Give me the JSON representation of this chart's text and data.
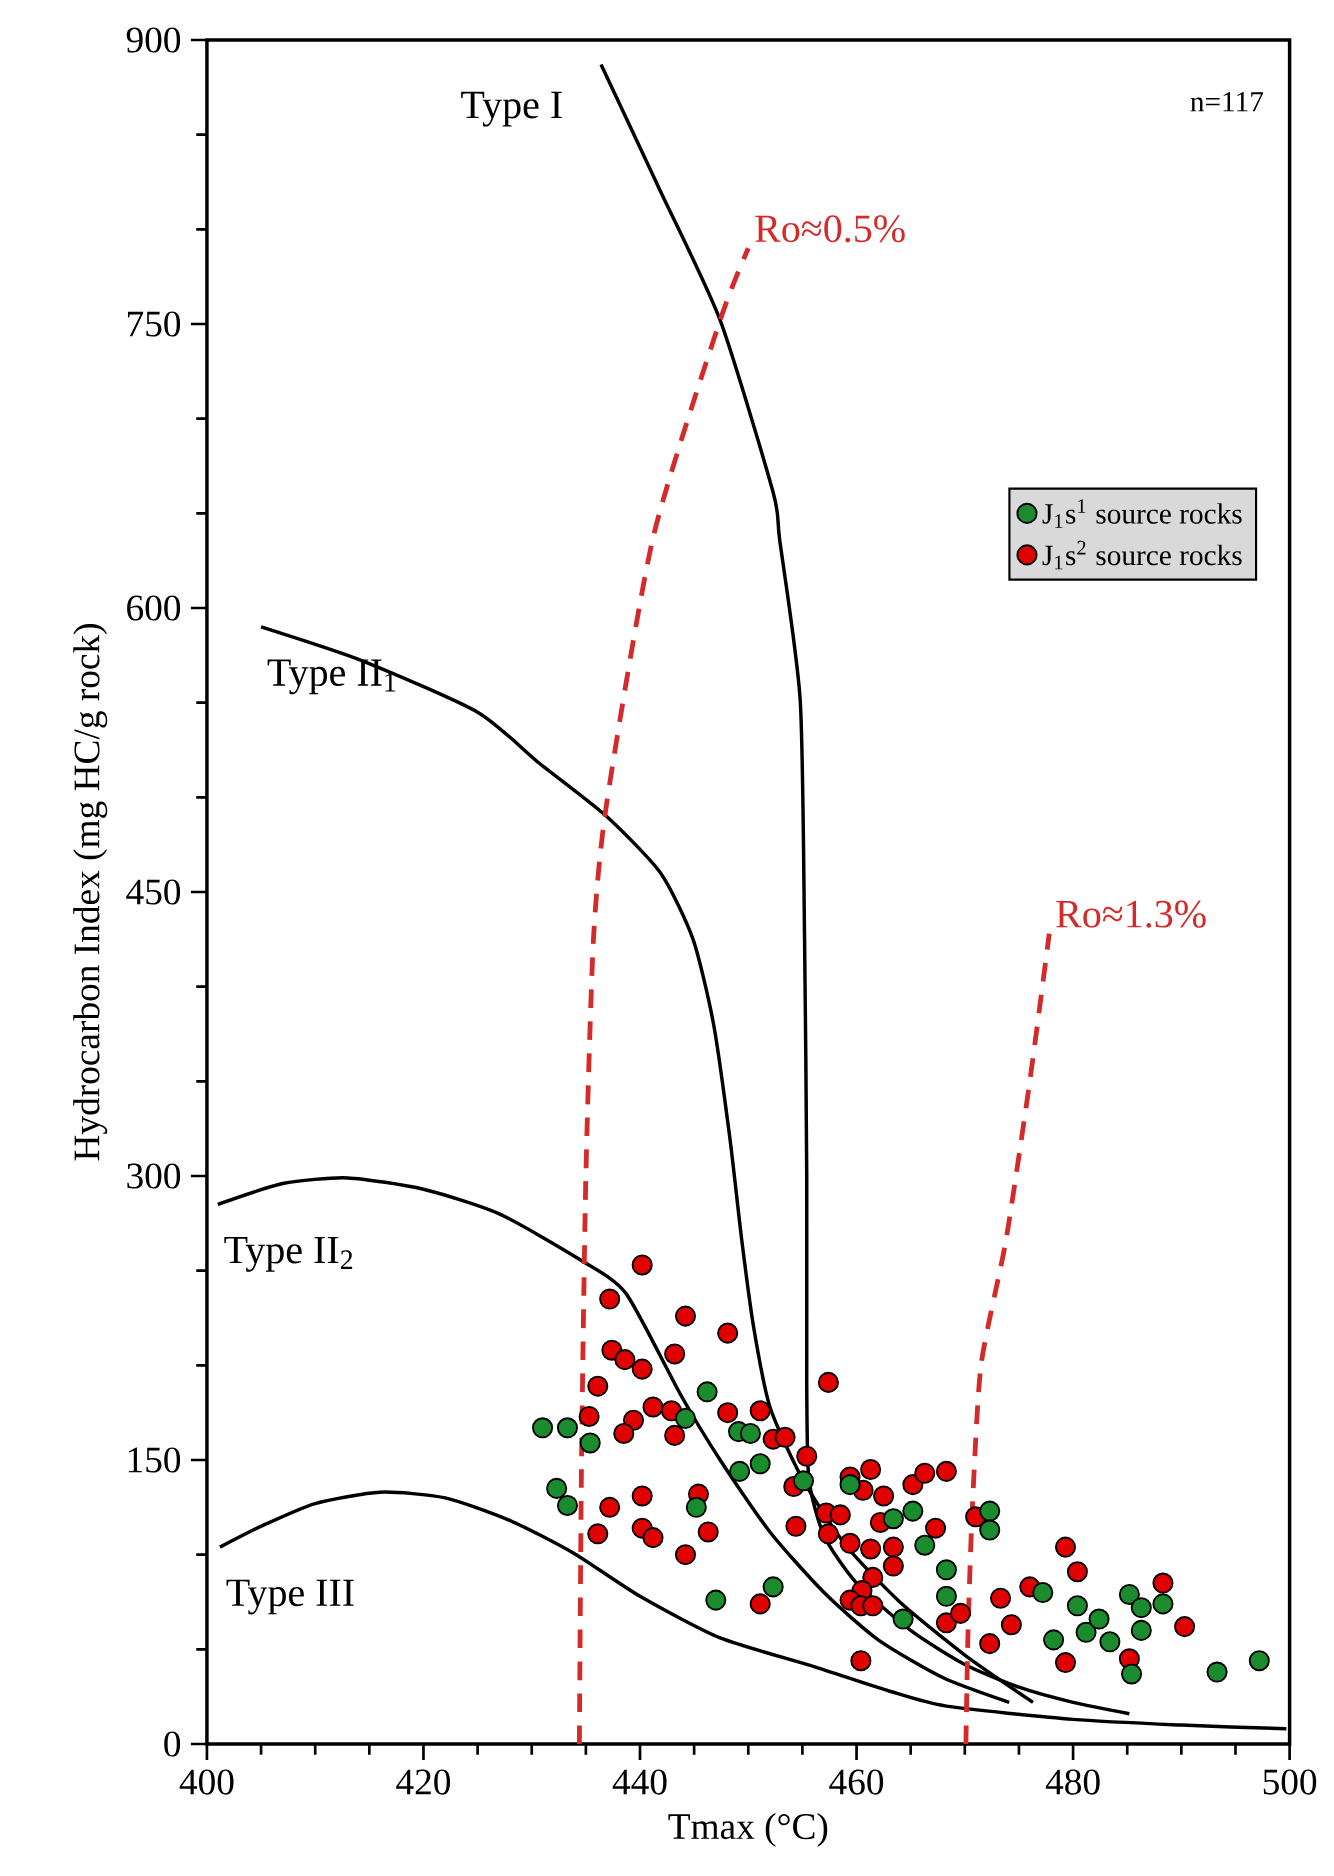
{
  "chart_data": {
    "type": "scatter",
    "xlabel": "Tmax (°C)",
    "ylabel": "Hydrocarbon Index (mg HC/g rock)",
    "xlim": [
      400,
      500
    ],
    "xticks": [
      400,
      420,
      440,
      460,
      480,
      500
    ],
    "ylim": [
      0,
      900
    ],
    "yticks": [
      0,
      150,
      300,
      450,
      600,
      750,
      900
    ],
    "legend": "right",
    "annotations": [
      "n=117"
    ],
    "series": [
      {
        "type": "line",
        "name": "Type I",
        "marker": "none",
        "color": "#000000",
        "line_style": "solid",
        "x": [
          436.4,
          441.9,
          447.4,
          452.3,
          452.9,
          454.8,
          455.2,
          455.4,
          455.4,
          455.6,
          457,
          460,
          465,
          470,
          475,
          480,
          485.2
        ],
        "values": [
          887,
          820,
          752,
          661,
          636,
          551,
          425,
          300,
          190,
          140,
          110,
          85,
          60,
          42,
          30,
          22,
          16
        ]
      },
      {
        "type": "line",
        "name": "Type II$_{1}$",
        "marker": "none",
        "color": "#000000",
        "line_style": "solid",
        "x": [
          405,
          414.4,
          425,
          430.7,
          436.9,
          441.9,
          444.9,
          446.8,
          448.3,
          449.4,
          450.5,
          452,
          455,
          459,
          464,
          470,
          476.3
        ],
        "values": [
          590,
          572,
          545,
          518,
          490,
          460,
          425,
          380,
          320,
          266,
          220,
          178,
          140,
          105,
          75,
          47,
          22
        ]
      },
      {
        "type": "line",
        "name": "Type II$_{2}$",
        "marker": "none",
        "color": "#000000",
        "line_style": "solid",
        "x": [
          401,
          407,
          413,
          420,
          427,
          434.4,
          438.7,
          443.7,
          447.4,
          452,
          457,
          462,
          468,
          474.1
        ],
        "values": [
          285,
          296,
          299,
          293,
          280,
          256,
          238,
          185,
          150,
          112,
          80,
          55,
          35,
          22
        ]
      },
      {
        "type": "line",
        "name": "Type III",
        "marker": "none",
        "color": "#000000",
        "line_style": "solid",
        "x": [
          401.2,
          405,
          410,
          416,
          422,
          428,
          433.8,
          440,
          447.4,
          456,
          463,
          468.3,
          480,
          490,
          499.7
        ],
        "values": [
          104,
          115,
          127,
          133,
          130,
          118,
          101,
          78,
          56,
          41,
          28,
          20,
          13,
          10,
          8
        ]
      },
      {
        "type": "line",
        "name": "Ro≈0.5%",
        "marker": "none",
        "color": "#d42a2a",
        "line_style": "dashed",
        "x": [
          434.4,
          434.6,
          435,
          435.7,
          436.9,
          441.2,
          447.4,
          450
        ],
        "values": [
          0,
          150,
          300,
          425,
          496,
          637,
          752,
          790
        ]
      },
      {
        "type": "line",
        "name": "Ro≈1.3%",
        "marker": "none",
        "color": "#d42a2a",
        "line_style": "dashed",
        "x": [
          470.1,
          470.3,
          470.7,
          471.5,
          473.8,
          476,
          477.8
        ],
        "values": [
          0,
          60,
          125,
          200,
          266,
          350,
          428
        ]
      },
      {
        "name": "J$_{1}$s$^{1}$  source rocks",
        "marker": "circle",
        "color": "#1a8c2e",
        "x": [
          431.0,
          433.3,
          435.4,
          432.3,
          433.3,
          446.2,
          444.2,
          445.2,
          447.0,
          449.1,
          450.2,
          449.2,
          451.1,
          455.1,
          459.4,
          463.4,
          465.2,
          466.3,
          468.3,
          468.3,
          472.3,
          472.3,
          452.3,
          464.3,
          477.2,
          480.4,
          478.2,
          481.2,
          482.4,
          483.4,
          485.2,
          486.3,
          488.3,
          486.3,
          485.4,
          493.3,
          497.2
        ],
        "values": [
          167,
          167,
          159,
          135,
          126,
          186,
          172,
          125,
          76,
          165,
          164,
          144,
          148,
          139,
          137,
          119,
          123,
          105,
          92,
          78,
          123,
          113,
          83,
          66,
          80,
          73,
          55,
          59,
          66,
          54,
          79,
          72,
          74,
          60,
          37,
          38,
          44
        ]
      },
      {
        "name": "J$_{1}$s$^{2}$  source rocks",
        "marker": "circle",
        "color": "#e00000",
        "x": [
          440.2,
          437.2,
          444.2,
          437.4,
          438.6,
          440.2,
          443.2,
          436.1,
          441.2,
          442.9,
          439.4,
          438.5,
          443.2,
          435.3,
          437.2,
          440.2,
          436.1,
          440.2,
          441.2,
          444.2,
          445.4,
          446.3,
          448.1,
          457.4,
          448.1,
          451.1,
          452.3,
          453.4,
          455.4,
          454.2,
          459.4,
          461.3,
          460.6,
          462.5,
          465.2,
          466.3,
          468.3,
          454.4,
          457.2,
          458.5,
          457.4,
          459.4,
          462.2,
          467.3,
          461.3,
          463.4,
          463.4,
          461.5,
          471.0,
          460.5,
          459.4,
          460.4,
          461.5,
          451.1,
          468.3,
          469.6,
          460.4,
          472.3,
          473.3,
          474.3,
          476.0,
          479.3,
          480.4,
          479.3,
          485.2,
          488.3,
          490.3
        ],
        "values": [
          253,
          235,
          226,
          208,
          203,
          198,
          206,
          189,
          178,
          176,
          171,
          164,
          163,
          173,
          125,
          131,
          111,
          114,
          109,
          100,
          132,
          112,
          217,
          191,
          175,
          176,
          161,
          162,
          152,
          136,
          141,
          145,
          134,
          131,
          137,
          143,
          144,
          115,
          122,
          121,
          111,
          106,
          117,
          114,
          103,
          104,
          94,
          88,
          120,
          81,
          76,
          73,
          73,
          74,
          64,
          69,
          44,
          53,
          77,
          63,
          83,
          104,
          91,
          43,
          45,
          85,
          62
        ]
      }
    ]
  }
}
